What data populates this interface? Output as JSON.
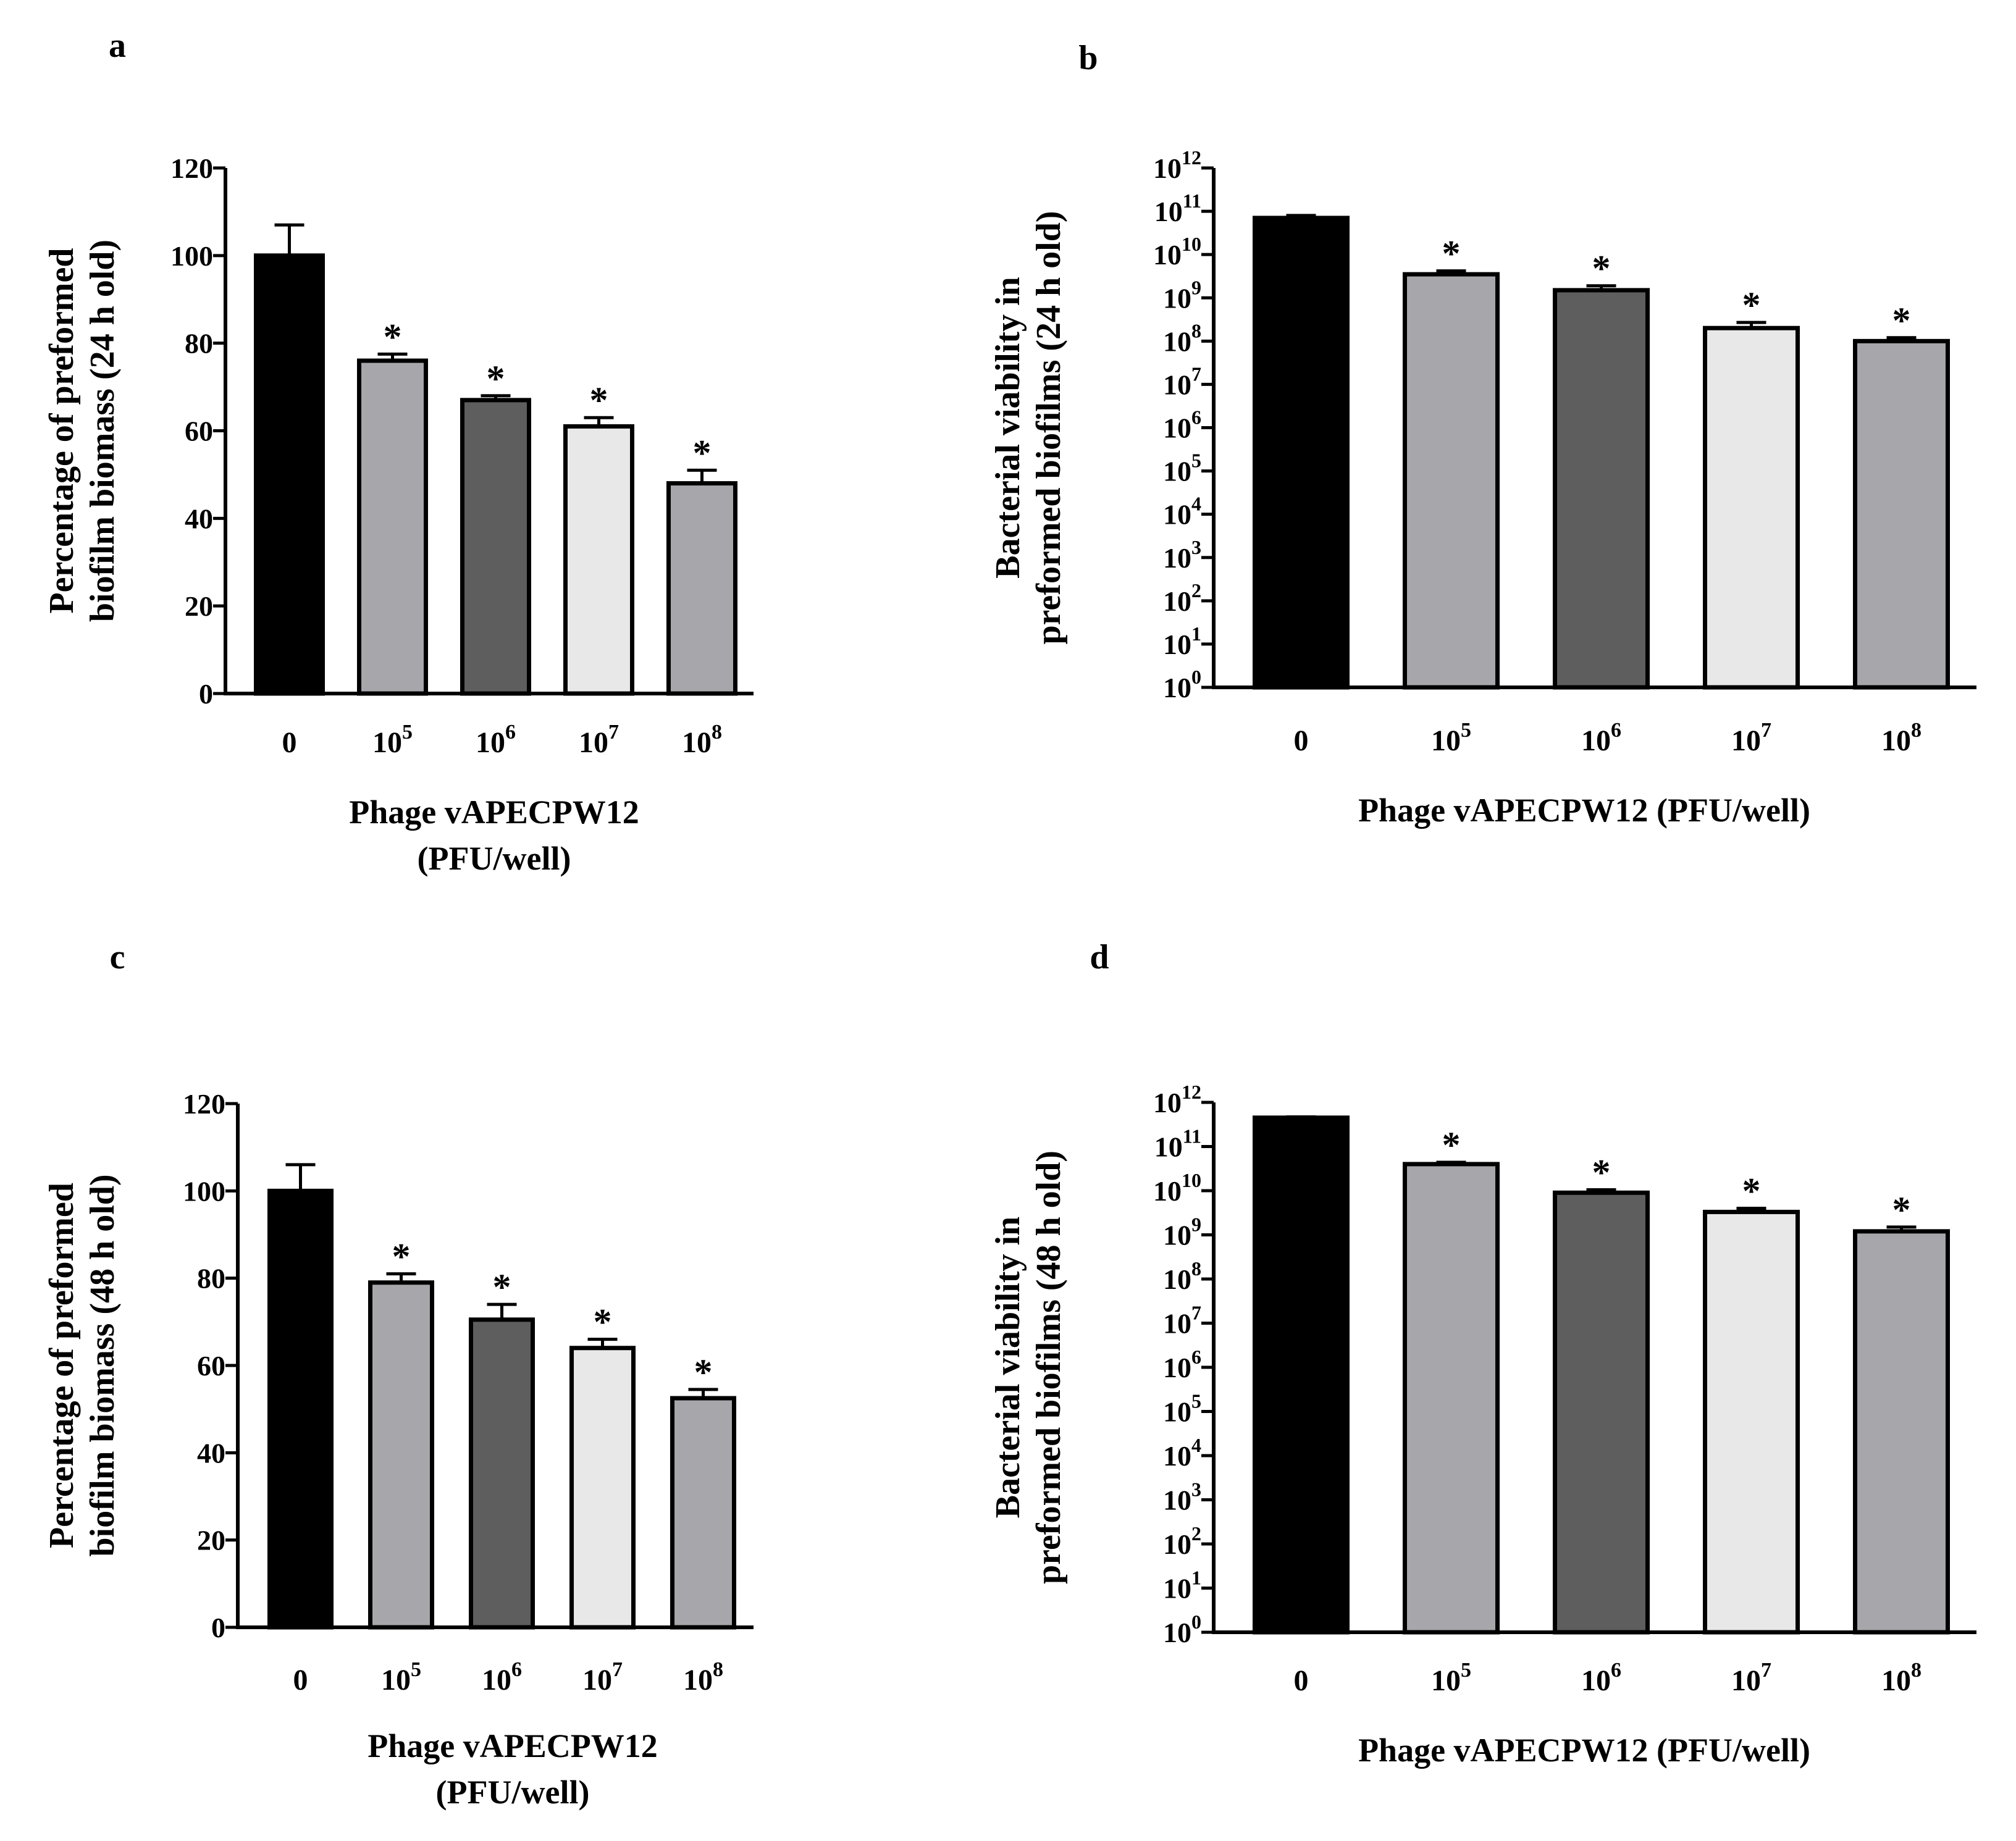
{
  "figure": {
    "panels": [
      {
        "letter": "a"
      },
      {
        "letter": "b"
      },
      {
        "letter": "c"
      },
      {
        "letter": "d"
      }
    ]
  },
  "chart_data": [
    {
      "panel": "a",
      "type": "bar",
      "scale": "linear",
      "ylabel_lines": [
        "Percentage of preformed",
        "biofilm biomass (24 h old)"
      ],
      "xlabel_lines": [
        "Phage vAPECPW12",
        "(PFU/well)"
      ],
      "categories": [
        {
          "base": "0",
          "exp": ""
        },
        {
          "base": "10",
          "exp": "5"
        },
        {
          "base": "10",
          "exp": "6"
        },
        {
          "base": "10",
          "exp": "7"
        },
        {
          "base": "10",
          "exp": "8"
        }
      ],
      "values": [
        100,
        76,
        67,
        61,
        48
      ],
      "errors": [
        7,
        1.5,
        1,
        2,
        3
      ],
      "significance": [
        "",
        "*",
        "*",
        "*",
        "*"
      ],
      "bar_colors": [
        "#000000",
        "#a6a6ab",
        "#5e5e5e",
        "#e8e8e8",
        "#a6a6ab"
      ],
      "ylim": [
        0,
        120
      ],
      "yticks": [
        {
          "value": 0,
          "label": "0"
        },
        {
          "value": 20,
          "label": "20"
        },
        {
          "value": 40,
          "label": "40"
        },
        {
          "value": 60,
          "label": "60"
        },
        {
          "value": 80,
          "label": "80"
        },
        {
          "value": 100,
          "label": "100"
        },
        {
          "value": 120,
          "label": "120"
        }
      ]
    },
    {
      "panel": "b",
      "type": "bar",
      "scale": "log10",
      "ylabel_lines": [
        "Bacterial viability in",
        "preformed biofilms (24 h old)"
      ],
      "xlabel_lines": [
        "Phage vAPECPW12  (PFU/well)"
      ],
      "categories": [
        {
          "base": "0",
          "exp": ""
        },
        {
          "base": "10",
          "exp": "5"
        },
        {
          "base": "10",
          "exp": "6"
        },
        {
          "base": "10",
          "exp": "7"
        },
        {
          "base": "10",
          "exp": "8"
        }
      ],
      "values": [
        70000000000,
        3500000000,
        1500000000,
        200000000,
        100000000
      ],
      "error_upper": [
        80000000000,
        4200000000,
        1900000000,
        270000000,
        120000000
      ],
      "significance": [
        "",
        "*",
        "*",
        "*",
        "*"
      ],
      "bar_colors": [
        "#000000",
        "#a6a6ab",
        "#5e5e5e",
        "#e8e8e8",
        "#a6a6ab"
      ],
      "ylim_exp": [
        0,
        12
      ],
      "yticks": [
        {
          "base": "10",
          "exp": "0"
        },
        {
          "base": "10",
          "exp": "1"
        },
        {
          "base": "10",
          "exp": "2"
        },
        {
          "base": "10",
          "exp": "3"
        },
        {
          "base": "10",
          "exp": "4"
        },
        {
          "base": "10",
          "exp": "5"
        },
        {
          "base": "10",
          "exp": "6"
        },
        {
          "base": "10",
          "exp": "7"
        },
        {
          "base": "10",
          "exp": "8"
        },
        {
          "base": "10",
          "exp": "9"
        },
        {
          "base": "10",
          "exp": "10"
        },
        {
          "base": "10",
          "exp": "11"
        },
        {
          "base": "10",
          "exp": "12"
        }
      ]
    },
    {
      "panel": "c",
      "type": "bar",
      "scale": "linear",
      "ylabel_lines": [
        "Percentage of preformed",
        "biofilm biomass (48 h old)"
      ],
      "xlabel_lines": [
        "Phage vAPECPW12",
        "(PFU/well)"
      ],
      "categories": [
        {
          "base": "0",
          "exp": ""
        },
        {
          "base": "10",
          "exp": "5"
        },
        {
          "base": "10",
          "exp": "6"
        },
        {
          "base": "10",
          "exp": "7"
        },
        {
          "base": "10",
          "exp": "8"
        }
      ],
      "values": [
        100,
        79,
        70.5,
        64,
        52.5
      ],
      "errors": [
        6,
        2,
        3.5,
        2,
        2
      ],
      "significance": [
        "",
        "*",
        "*",
        "*",
        "*"
      ],
      "bar_colors": [
        "#000000",
        "#a6a6ab",
        "#5e5e5e",
        "#e8e8e8",
        "#a6a6ab"
      ],
      "ylim": [
        0,
        120
      ],
      "yticks": [
        {
          "value": 0,
          "label": "0"
        },
        {
          "value": 20,
          "label": "20"
        },
        {
          "value": 40,
          "label": "40"
        },
        {
          "value": 60,
          "label": "60"
        },
        {
          "value": 80,
          "label": "80"
        },
        {
          "value": 100,
          "label": "100"
        },
        {
          "value": 120,
          "label": "120"
        }
      ]
    },
    {
      "panel": "d",
      "type": "bar",
      "scale": "log10",
      "ylabel_lines": [
        "Bacterial viability in",
        "preformed biofilms (48 h old)"
      ],
      "xlabel_lines": [
        "Phage vAPECPW12  (PFU/well)"
      ],
      "categories": [
        {
          "base": "0",
          "exp": ""
        },
        {
          "base": "10",
          "exp": "5"
        },
        {
          "base": "10",
          "exp": "6"
        },
        {
          "base": "10",
          "exp": "7"
        },
        {
          "base": "10",
          "exp": "8"
        }
      ],
      "values": [
        450000000000,
        40000000000,
        9000000000,
        3300000000,
        1200000000
      ],
      "error_upper": [
        470000000000,
        44000000000,
        10500000000,
        4000000000,
        1500000000
      ],
      "significance": [
        "",
        "*",
        "*",
        "*",
        "*"
      ],
      "bar_colors": [
        "#000000",
        "#a6a6ab",
        "#5e5e5e",
        "#e8e8e8",
        "#a6a6ab"
      ],
      "ylim_exp": [
        0,
        12
      ],
      "yticks": [
        {
          "base": "10",
          "exp": "0"
        },
        {
          "base": "10",
          "exp": "1"
        },
        {
          "base": "10",
          "exp": "2"
        },
        {
          "base": "10",
          "exp": "3"
        },
        {
          "base": "10",
          "exp": "4"
        },
        {
          "base": "10",
          "exp": "5"
        },
        {
          "base": "10",
          "exp": "6"
        },
        {
          "base": "10",
          "exp": "7"
        },
        {
          "base": "10",
          "exp": "8"
        },
        {
          "base": "10",
          "exp": "9"
        },
        {
          "base": "10",
          "exp": "10"
        },
        {
          "base": "10",
          "exp": "11"
        },
        {
          "base": "10",
          "exp": "12"
        }
      ]
    }
  ]
}
